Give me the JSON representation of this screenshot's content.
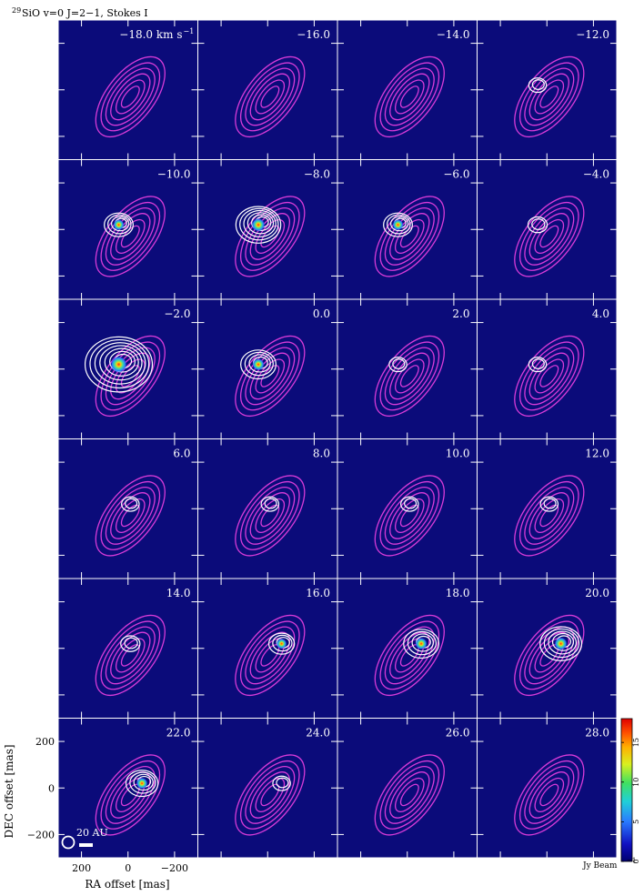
{
  "title": {
    "prefix": "29",
    "main": "SiO v=0 J=2−1, Stokes I"
  },
  "panel_velocities": [
    "−18.0 km s",
    "−16.0",
    "−14.0",
    "−12.0",
    "−10.0",
    "−8.0",
    "−6.0",
    "−4.0",
    "−2.0",
    "0.0",
    "2.0",
    "4.0",
    "6.0",
    "8.0",
    "10.0",
    "12.0",
    "14.0",
    "16.0",
    "18.0",
    "20.0",
    "22.0",
    "24.0",
    "26.0",
    "28.0"
  ],
  "first_velocity_unit_exponent": "−1",
  "axes": {
    "xlabel": "RA offset [mas]",
    "ylabel": "DEC offset [mas]",
    "xticks": [
      "200",
      "0",
      "−200"
    ],
    "yticks": [
      "200",
      "0",
      "−200"
    ]
  },
  "scale_bar_label": "20 AU",
  "colorbar": {
    "label": "Jy Beam",
    "label_exponent": "−1",
    "ticks": [
      "0",
      "5",
      "10",
      "15"
    ],
    "range": [
      0,
      18
    ]
  },
  "colors": {
    "panel_bg": "#0b0b7a",
    "continuum": "#d83bd8",
    "line_contour": "#ffffff"
  },
  "chart_data": {
    "type": "channel_map_grid",
    "rows": 6,
    "cols": 4,
    "x_unit": "mas",
    "y_unit": "mas",
    "xlim": [
      300,
      -300
    ],
    "ylim": [
      -300,
      300
    ],
    "velocity_unit": "km/s",
    "velocities": [
      -18,
      -16,
      -14,
      -12,
      -10,
      -8,
      -6,
      -4,
      -2,
      0,
      2,
      4,
      6,
      8,
      10,
      12,
      14,
      16,
      18,
      20,
      22,
      24,
      26,
      28
    ],
    "peak_intensity_estimate_jy_beam": [
      0,
      0,
      0,
      0.5,
      4,
      9,
      4,
      1,
      16,
      6,
      0.5,
      0.5,
      0.5,
      0.5,
      0.5,
      0.5,
      1,
      3,
      6,
      8,
      5,
      0.5,
      0,
      0
    ],
    "colorbar_range_jy_beam": [
      0,
      18
    ]
  }
}
